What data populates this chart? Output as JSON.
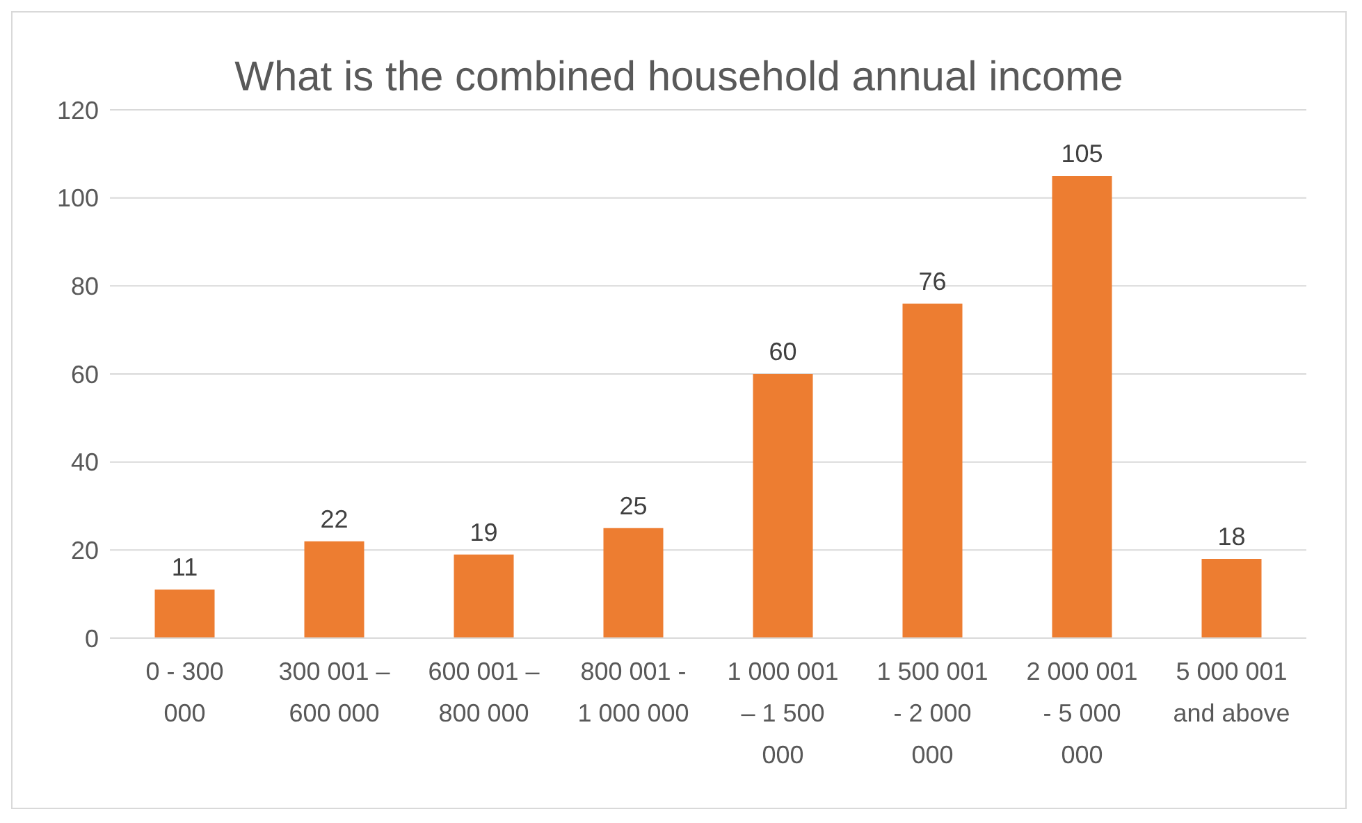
{
  "chart_data": {
    "type": "bar",
    "title": "What is the combined household annual income",
    "categories": [
      "0 - 300 000",
      "300 001 – 600 000",
      "600 001 – 800 000",
      "800 001 - 1 000 000",
      "1 000 001 – 1 500 000",
      "1 500 001 - 2 000 000",
      "2 000 001 - 5 000 000",
      "5 000 001 and above"
    ],
    "values": [
      11,
      22,
      19,
      25,
      60,
      76,
      105,
      18
    ],
    "color": "#ed7d31",
    "ylim": [
      0,
      120
    ],
    "yticks": [
      0,
      20,
      40,
      60,
      80,
      100,
      120
    ],
    "grid": "y",
    "data_labels": true
  }
}
